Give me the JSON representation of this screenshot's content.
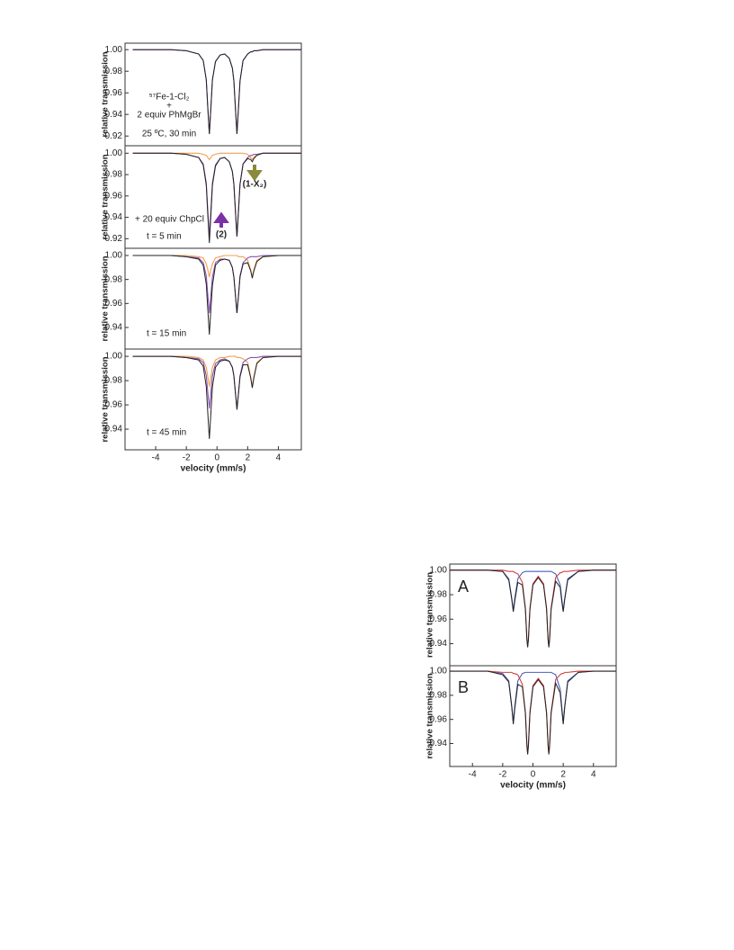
{
  "chart_data": [
    {
      "type": "line",
      "ylabel": "relative transmission",
      "annotations": [
        "⁵⁷Fe-1-Cl₂",
        "+",
        "2 equiv PhMgBr",
        "25 ºC, 30 min"
      ],
      "xlim": [
        -6,
        5.5
      ],
      "ylim": [
        0.911,
        1.006
      ],
      "yticks": [
        0.92,
        0.94,
        0.96,
        0.98,
        {
          "value": 1.0,
          "label": "1.00"
        }
      ],
      "x": [
        -5.5,
        -4,
        -3,
        -2,
        -1.2,
        -0.9,
        -0.7,
        -0.6,
        -0.5,
        -0.4,
        -0.3,
        -0.1,
        0.2,
        0.5,
        0.8,
        1.0,
        1.1,
        1.2,
        1.3,
        1.4,
        1.5,
        1.7,
        2.0,
        2.2,
        2.3,
        2.4,
        2.6,
        3.0,
        4.0,
        5.5
      ],
      "series": [
        {
          "color": "#8a4fb0",
          "values": [
            1.0,
            1.0,
            1.0,
            0.999,
            0.996,
            0.99,
            0.972,
            0.946,
            0.922,
            0.946,
            0.972,
            0.989,
            0.995,
            0.996,
            0.992,
            0.983,
            0.971,
            0.946,
            0.922,
            0.946,
            0.971,
            0.99,
            0.996,
            0.998,
            0.998,
            0.999,
            0.999,
            1.0,
            1.0,
            1.0
          ]
        },
        {
          "color": "#222222",
          "values": [
            1.0,
            1.0,
            1.0,
            0.999,
            0.996,
            0.99,
            0.972,
            0.946,
            0.922,
            0.946,
            0.972,
            0.989,
            0.995,
            0.996,
            0.992,
            0.983,
            0.971,
            0.946,
            0.922,
            0.946,
            0.971,
            0.99,
            0.996,
            0.998,
            0.998,
            0.999,
            0.999,
            1.0,
            1.0,
            1.0
          ]
        }
      ]
    },
    {
      "type": "line",
      "ylabel": "relative transmission",
      "annotations": [
        "+ 20 equiv ChpCl",
        "t = 5 min",
        "(2)",
        "(1-X₂)"
      ],
      "xlim": [
        -6,
        5.5
      ],
      "ylim": [
        0.911,
        1.007
      ],
      "yticks": [
        0.92,
        0.94,
        0.96,
        0.98,
        {
          "value": 1.0,
          "label": "1.00"
        }
      ],
      "x": [
        -5.5,
        -4,
        -3,
        -2,
        -1.2,
        -0.9,
        -0.7,
        -0.6,
        -0.5,
        -0.4,
        -0.3,
        -0.1,
        0.2,
        0.5,
        0.8,
        1.0,
        1.1,
        1.2,
        1.3,
        1.4,
        1.5,
        1.7,
        2.0,
        2.2,
        2.3,
        2.4,
        2.6,
        3.0,
        4.0,
        5.5
      ],
      "series": [
        {
          "color": "#f0a050",
          "values": [
            1.0,
            1.0,
            1.0,
            1.0,
            1.0,
            0.999,
            0.998,
            0.996,
            0.994,
            0.996,
            0.998,
            0.999,
            1.0,
            1.0,
            1.0,
            1.0,
            1.0,
            1.0,
            1.0,
            1.0,
            1.0,
            1.0,
            0.999,
            0.996,
            0.994,
            0.996,
            0.999,
            1.0,
            1.0,
            1.0
          ]
        },
        {
          "color": "#8a4fb0",
          "values": [
            1.0,
            1.0,
            1.0,
            0.999,
            0.996,
            0.99,
            0.972,
            0.946,
            0.922,
            0.946,
            0.972,
            0.989,
            0.995,
            0.996,
            0.992,
            0.983,
            0.971,
            0.946,
            0.922,
            0.946,
            0.971,
            0.99,
            0.996,
            0.998,
            0.998,
            0.999,
            0.999,
            1.0,
            1.0,
            1.0
          ]
        },
        {
          "color": "#222222",
          "values": [
            1.0,
            1.0,
            1.0,
            0.999,
            0.996,
            0.989,
            0.97,
            0.942,
            0.916,
            0.942,
            0.97,
            0.988,
            0.995,
            0.996,
            0.992,
            0.983,
            0.971,
            0.946,
            0.922,
            0.946,
            0.971,
            0.99,
            0.995,
            0.994,
            0.992,
            0.995,
            0.998,
            1.0,
            1.0,
            1.0
          ]
        }
      ]
    },
    {
      "type": "line",
      "ylabel": "relative transmission",
      "annotations": [
        "t = 15 min"
      ],
      "xlim": [
        -6,
        5.5
      ],
      "ylim": [
        0.922,
        1.006
      ],
      "yticks": [
        0.94,
        0.96,
        0.98,
        {
          "value": 1.0,
          "label": "1.00"
        }
      ],
      "x": [
        -5.5,
        -4,
        -3,
        -2,
        -1.2,
        -0.9,
        -0.7,
        -0.6,
        -0.5,
        -0.4,
        -0.3,
        -0.1,
        0.2,
        0.5,
        0.8,
        1.0,
        1.1,
        1.2,
        1.3,
        1.4,
        1.5,
        1.7,
        2.0,
        2.2,
        2.3,
        2.4,
        2.6,
        3.0,
        4.0,
        5.5
      ],
      "series": [
        {
          "color": "#f0a050",
          "values": [
            1.0,
            1.0,
            1.0,
            1.0,
            0.999,
            0.998,
            0.993,
            0.988,
            0.982,
            0.988,
            0.993,
            0.998,
            0.999,
            1.0,
            1.0,
            1.0,
            1.0,
            1.0,
            1.0,
            0.999,
            0.999,
            0.999,
            0.996,
            0.988,
            0.982,
            0.988,
            0.996,
            0.999,
            1.0,
            1.0
          ]
        },
        {
          "color": "#8a4fb0",
          "values": [
            1.0,
            1.0,
            1.0,
            0.999,
            0.998,
            0.994,
            0.983,
            0.967,
            0.952,
            0.967,
            0.982,
            0.994,
            0.997,
            0.997,
            0.996,
            0.99,
            0.982,
            0.967,
            0.952,
            0.967,
            0.983,
            0.994,
            0.998,
            0.999,
            0.999,
            0.999,
            0.999,
            1.0,
            1.0,
            1.0
          ]
        },
        {
          "color": "#222222",
          "values": [
            1.0,
            1.0,
            1.0,
            0.999,
            0.997,
            0.992,
            0.976,
            0.955,
            0.934,
            0.955,
            0.975,
            0.992,
            0.996,
            0.997,
            0.996,
            0.99,
            0.982,
            0.967,
            0.952,
            0.966,
            0.982,
            0.993,
            0.994,
            0.987,
            0.981,
            0.987,
            0.995,
            0.999,
            1.0,
            1.0
          ]
        }
      ]
    },
    {
      "type": "line",
      "ylabel": "relative transmission",
      "xlabel": "velocity (mm/s)",
      "annotations": [
        "t = 45 min"
      ],
      "xlim": [
        -6,
        5.5
      ],
      "xticks": [
        -4,
        -2,
        0,
        2,
        4
      ],
      "ylim": [
        0.923,
        1.006
      ],
      "yticks": [
        0.94,
        0.96,
        0.98,
        {
          "value": 1.0,
          "label": "1.00"
        }
      ],
      "x": [
        -5.5,
        -4,
        -3,
        -2,
        -1.2,
        -0.9,
        -0.7,
        -0.6,
        -0.5,
        -0.4,
        -0.3,
        -0.1,
        0.2,
        0.5,
        0.8,
        1.0,
        1.1,
        1.2,
        1.3,
        1.4,
        1.5,
        1.7,
        2.0,
        2.2,
        2.3,
        2.4,
        2.6,
        3.0,
        4.0,
        5.5
      ],
      "series": [
        {
          "color": "#f0a050",
          "values": [
            1.0,
            1.0,
            1.0,
            1.0,
            0.999,
            0.997,
            0.991,
            0.983,
            0.975,
            0.983,
            0.991,
            0.997,
            0.999,
            0.999,
            1.0,
            1.0,
            1.0,
            1.0,
            0.999,
            0.999,
            0.999,
            0.998,
            0.995,
            0.983,
            0.975,
            0.983,
            0.995,
            0.999,
            1.0,
            1.0
          ]
        },
        {
          "color": "#8a4fb0",
          "values": [
            1.0,
            1.0,
            1.0,
            0.999,
            0.998,
            0.995,
            0.984,
            0.97,
            0.957,
            0.97,
            0.984,
            0.994,
            0.997,
            0.998,
            0.996,
            0.991,
            0.984,
            0.97,
            0.957,
            0.97,
            0.984,
            0.995,
            0.998,
            0.999,
            0.999,
            0.999,
            0.999,
            1.0,
            1.0,
            1.0
          ]
        },
        {
          "color": "#222222",
          "values": [
            1.0,
            1.0,
            1.0,
            0.999,
            0.997,
            0.992,
            0.975,
            0.953,
            0.932,
            0.953,
            0.975,
            0.991,
            0.996,
            0.997,
            0.996,
            0.991,
            0.984,
            0.97,
            0.956,
            0.969,
            0.983,
            0.993,
            0.993,
            0.982,
            0.974,
            0.982,
            0.994,
            0.999,
            1.0,
            1.0
          ]
        }
      ]
    },
    {
      "type": "line",
      "ylabel": "relative transmission",
      "annotations": [
        "A"
      ],
      "xlim": [
        -5.5,
        5.5
      ],
      "ylim": [
        0.922,
        1.005
      ],
      "yticks": [
        0.94,
        0.96,
        0.98,
        {
          "value": 1.0,
          "label": "1.00"
        }
      ],
      "x": [
        -5.5,
        -4,
        -3,
        -2,
        -1.6,
        -1.4,
        -1.3,
        -1.2,
        -1.0,
        -0.7,
        -0.5,
        -0.4,
        -0.35,
        -0.3,
        -0.2,
        0,
        0.35,
        0.7,
        0.9,
        1.0,
        1.05,
        1.1,
        1.2,
        1.5,
        1.8,
        1.9,
        2.0,
        2.1,
        2.3,
        3,
        4,
        5.5
      ],
      "series": [
        {
          "color": "#4a5fc0",
          "values": [
            1.0,
            1.0,
            1.0,
            0.999,
            0.993,
            0.977,
            0.967,
            0.977,
            0.993,
            0.998,
            0.999,
            0.999,
            0.999,
            0.999,
            0.999,
            0.999,
            0.999,
            0.999,
            0.999,
            0.999,
            0.999,
            0.999,
            0.999,
            0.997,
            0.988,
            0.977,
            0.967,
            0.977,
            0.993,
            0.999,
            1.0,
            1.0
          ]
        },
        {
          "color": "#d04040",
          "values": [
            1.0,
            1.0,
            1.0,
            1.0,
            0.999,
            0.999,
            0.999,
            0.998,
            0.997,
            0.99,
            0.969,
            0.944,
            0.938,
            0.944,
            0.969,
            0.989,
            0.995,
            0.989,
            0.969,
            0.944,
            0.938,
            0.944,
            0.969,
            0.994,
            0.998,
            0.998,
            0.999,
            0.999,
            0.999,
            1.0,
            1.0,
            1.0
          ]
        },
        {
          "color": "#222222",
          "values": [
            1.0,
            1.0,
            1.0,
            0.999,
            0.992,
            0.976,
            0.966,
            0.975,
            0.99,
            0.988,
            0.968,
            0.943,
            0.937,
            0.943,
            0.968,
            0.988,
            0.994,
            0.988,
            0.968,
            0.943,
            0.937,
            0.943,
            0.968,
            0.991,
            0.986,
            0.975,
            0.966,
            0.976,
            0.992,
            0.999,
            1.0,
            1.0
          ]
        }
      ]
    },
    {
      "type": "line",
      "ylabel": "relative transmission",
      "xlabel": "velocity (mm/s)",
      "annotations": [
        "B"
      ],
      "xlim": [
        -5.5,
        5.5
      ],
      "xticks": [
        -4,
        -2,
        0,
        2,
        4
      ],
      "ylim": [
        0.921,
        1.0045
      ],
      "yticks": [
        0.94,
        0.96,
        0.98,
        {
          "value": 1.0,
          "label": "1.00"
        }
      ],
      "x": [
        -5.5,
        -4,
        -3,
        -2,
        -1.6,
        -1.4,
        -1.3,
        -1.2,
        -1.0,
        -0.7,
        -0.5,
        -0.4,
        -0.35,
        -0.3,
        -0.2,
        0,
        0.35,
        0.7,
        0.9,
        1.0,
        1.05,
        1.1,
        1.2,
        1.5,
        1.8,
        1.9,
        2.0,
        2.1,
        2.3,
        3,
        4,
        5.5
      ],
      "series": [
        {
          "color": "#4a5fc0",
          "values": [
            1.0,
            1.0,
            1.0,
            0.998,
            0.992,
            0.971,
            0.958,
            0.971,
            0.992,
            0.998,
            0.999,
            0.999,
            0.999,
            0.999,
            0.999,
            0.999,
            0.999,
            0.999,
            0.999,
            0.999,
            0.999,
            0.999,
            0.999,
            0.997,
            0.985,
            0.971,
            0.958,
            0.971,
            0.992,
            0.999,
            1.0,
            1.0
          ]
        },
        {
          "color": "#d04040",
          "values": [
            1.0,
            1.0,
            1.0,
            0.999,
            0.999,
            0.999,
            0.998,
            0.998,
            0.997,
            0.989,
            0.966,
            0.939,
            0.932,
            0.939,
            0.966,
            0.988,
            0.994,
            0.988,
            0.966,
            0.939,
            0.932,
            0.939,
            0.966,
            0.993,
            0.997,
            0.998,
            0.998,
            0.999,
            0.999,
            1.0,
            1.0,
            1.0
          ]
        },
        {
          "color": "#222222",
          "values": [
            1.0,
            1.0,
            1.0,
            0.997,
            0.991,
            0.97,
            0.956,
            0.969,
            0.989,
            0.987,
            0.965,
            0.938,
            0.931,
            0.938,
            0.965,
            0.987,
            0.993,
            0.987,
            0.965,
            0.938,
            0.931,
            0.938,
            0.965,
            0.99,
            0.982,
            0.969,
            0.956,
            0.97,
            0.991,
            0.999,
            1.0,
            1.0
          ]
        }
      ]
    }
  ]
}
